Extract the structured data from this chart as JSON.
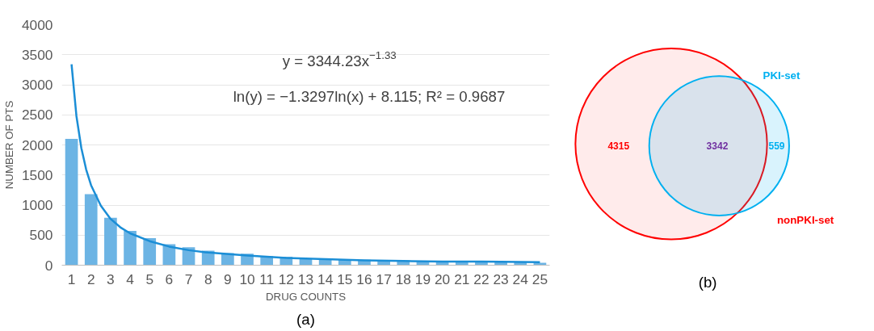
{
  "chart_data": [
    {
      "type": "bar",
      "x": [
        1,
        2,
        3,
        4,
        5,
        6,
        7,
        8,
        9,
        10,
        11,
        12,
        13,
        14,
        15,
        16,
        17,
        18,
        19,
        20,
        21,
        22,
        23,
        24,
        25
      ],
      "series": [
        {
          "type": "bar",
          "color": "#6cb4e4",
          "values": [
            2100,
            1180,
            790,
            570,
            450,
            350,
            300,
            240,
            200,
            190,
            150,
            140,
            110,
            110,
            100,
            90,
            80,
            80,
            70,
            70,
            60,
            60,
            50,
            50,
            40
          ]
        },
        {
          "type": "line",
          "color": "#1b8ed6",
          "x": [
            1,
            1.25,
            1.5,
            1.75,
            2,
            2.5,
            3,
            3.5,
            4,
            5,
            6,
            7,
            8,
            10,
            12,
            14,
            16,
            18,
            20,
            22,
            25
          ],
          "values": [
            3340,
            2480,
            1950,
            1590,
            1330,
            990,
            770,
            630,
            530,
            400,
            310,
            250,
            210,
            160,
            120,
            100,
            80,
            70,
            60,
            60,
            50
          ]
        }
      ],
      "xlabel": "DRUG COUNTS",
      "ylabel": "NUMBER OF PTS",
      "xlim": [
        0.5,
        25.5
      ],
      "xticks": [
        1,
        2,
        3,
        4,
        5,
        6,
        7,
        8,
        9,
        10,
        11,
        12,
        13,
        14,
        15,
        16,
        17,
        18,
        19,
        20,
        21,
        22,
        23,
        24,
        25
      ],
      "ylim": [
        0,
        4000
      ],
      "yticks": [
        0,
        500,
        1000,
        1500,
        2000,
        2500,
        3000,
        3500,
        4000
      ],
      "grid": "y",
      "annotations": [
        "y = 3344.23x$^{−1.33}$",
        "ln(y) = −1.3297ln(x) + 8.115; R² = 0.9687",
        "(a)"
      ]
    },
    {
      "type": "other",
      "categories": [
        null,
        null,
        null
      ],
      "values": [
        4315,
        3342,
        559
      ],
      "colors": [
        "#ff0000",
        "#7030a0",
        "#00b0f0"
      ],
      "data_labels": true,
      "annotations": [
        "nonPKI-set",
        "PKI-set",
        "(b)"
      ]
    }
  ]
}
